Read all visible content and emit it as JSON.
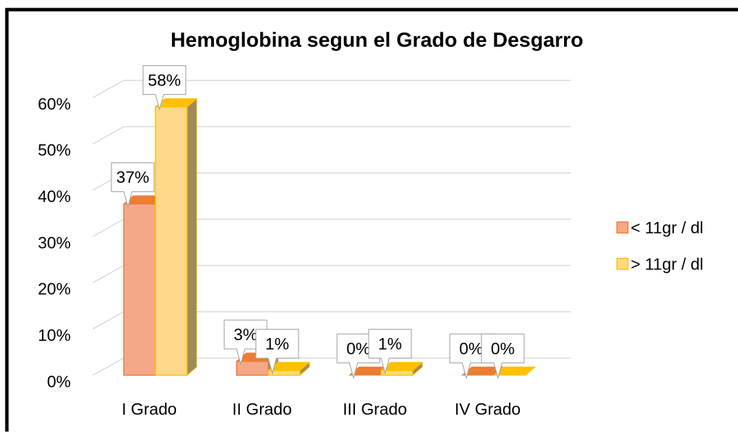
{
  "chart_data": {
    "type": "bar3d",
    "title": "Hemoglobina segun el Grado de Desgarro",
    "categories": [
      "I Grado",
      "II Grado",
      "III Grado",
      "IV Grado"
    ],
    "series": [
      {
        "name": "< 11gr / dl",
        "color": "#f4a888",
        "stroke": "#ed7d31",
        "values": [
          37,
          3,
          0,
          0
        ],
        "value_labels": [
          "37%",
          "3%",
          "0%",
          "0%"
        ]
      },
      {
        "name": "> 11gr / dl",
        "color": "#ffd98a",
        "stroke": "#ffc000",
        "values": [
          58,
          1,
          1,
          0
        ],
        "value_labels": [
          "58%",
          "1%",
          "1%",
          "0%"
        ]
      }
    ],
    "ylim": [
      0,
      60
    ],
    "yticks": [
      {
        "value": 0,
        "label": "0%"
      },
      {
        "value": 10,
        "label": "10%"
      },
      {
        "value": 20,
        "label": "20%"
      },
      {
        "value": 30,
        "label": "30%"
      },
      {
        "value": 40,
        "label": "40%"
      },
      {
        "value": 50,
        "label": "50%"
      },
      {
        "value": 60,
        "label": "60%"
      }
    ],
    "grid": true,
    "legend": "right"
  }
}
